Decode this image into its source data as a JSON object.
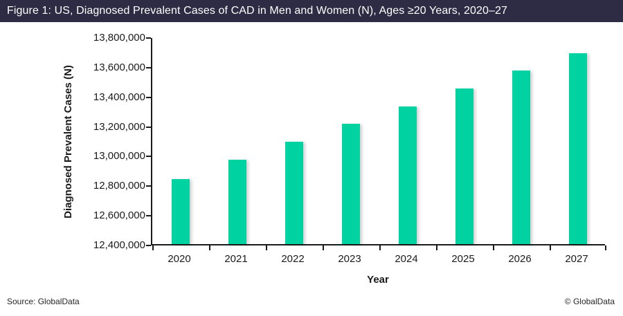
{
  "header": {
    "title": "Figure 1: US, Diagnosed Prevalent Cases of CAD in Men and Women (N), Ages ≥20 Years, 2020–27"
  },
  "footer": {
    "source": "Source: GlobalData",
    "copyright": "© GlobalData"
  },
  "colors": {
    "header_bg": "#2e2b45",
    "header_text": "#ffffff",
    "bar": "#00d2a2",
    "axis": "#1a1a1a"
  },
  "chart_data": {
    "type": "bar",
    "title": "Figure 1: US, Diagnosed Prevalent Cases of CAD in Men and Women (N), Ages ≥20 Years, 2020–27",
    "categories": [
      "2020",
      "2021",
      "2022",
      "2023",
      "2024",
      "2025",
      "2026",
      "2027"
    ],
    "values": [
      12840000,
      12970000,
      13090000,
      13210000,
      13330000,
      13450000,
      13570000,
      13690000
    ],
    "xlabel": "Year",
    "ylabel": "Diagnosed Prevalent Cases (N)",
    "ylim": [
      12400000,
      13800000
    ],
    "ytick_step": 200000,
    "yticks": [
      12400000,
      12600000,
      12800000,
      13000000,
      13200000,
      13400000,
      13600000,
      13800000
    ],
    "ytick_labels": [
      "12,400,000",
      "12,600,000",
      "12,800,000",
      "13,000,000",
      "13,200,000",
      "13,400,000",
      "13,600,000",
      "13,800,000"
    ],
    "grid": false,
    "legend": "none",
    "bar_color": "#00d2a2"
  }
}
